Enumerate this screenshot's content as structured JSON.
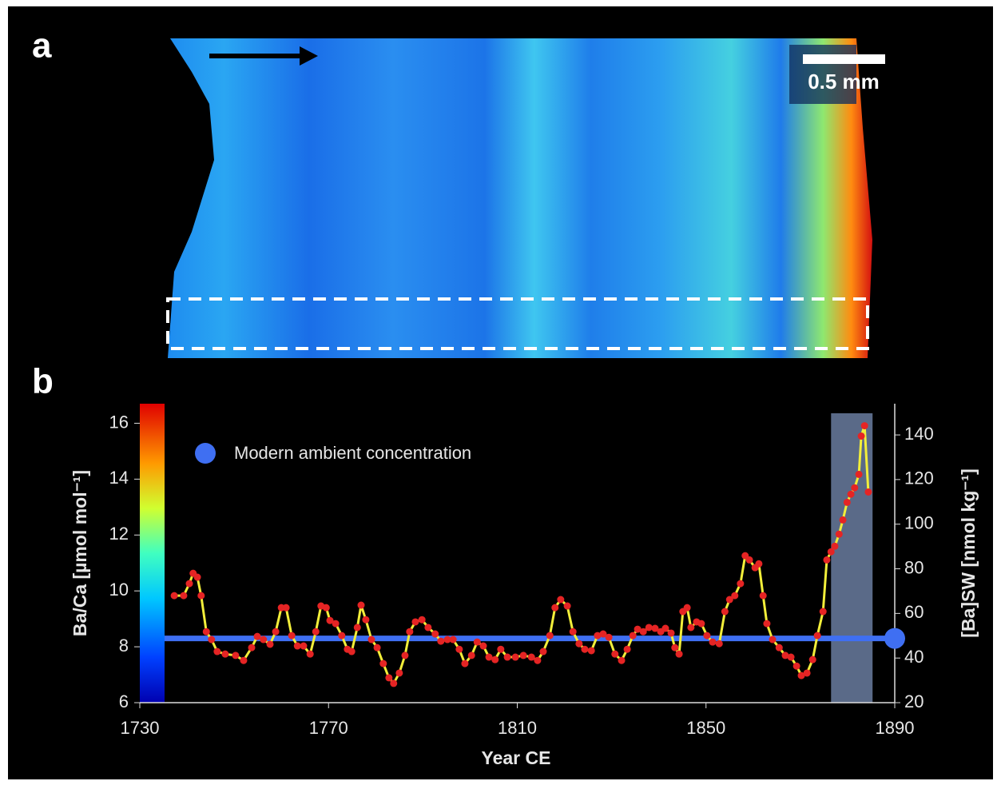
{
  "panel_a": {
    "label": "a",
    "scale_bar": "0.5 mm"
  },
  "chart_data": {
    "type": "line",
    "panel_label": "b",
    "xlabel": "Year CE",
    "ylabel": "Ba/Ca [µmol mol⁻¹]",
    "y2label": "[Ba]SW [nmol kg⁻¹]",
    "xlim": [
      1730,
      1890
    ],
    "xticks": [
      1730,
      1770,
      1810,
      1850,
      1890
    ],
    "ylim": [
      6,
      16.7
    ],
    "yticks": [
      6,
      8,
      10,
      12,
      14,
      16
    ],
    "y2lim": [
      20,
      154
    ],
    "y2ticks": [
      20,
      40,
      60,
      80,
      100,
      120,
      140
    ],
    "shaded_range": [
      1876.5,
      1885.3
    ],
    "shade_color": "#5a6a88",
    "reference": {
      "name": "Modern ambient concentration",
      "value": 8.3,
      "color": "#3f6ff2"
    },
    "series": [
      {
        "color": "#f2ee3a",
        "marker_color": "#e52424",
        "x": [
          1737.3,
          1739.3,
          1740.5,
          1741.3,
          1742.2,
          1743,
          1744.1,
          1745.2,
          1746.4,
          1748.1,
          1750.3,
          1752,
          1753.7,
          1754.9,
          1756.2,
          1757.6,
          1758.8,
          1760,
          1761,
          1762.2,
          1763.4,
          1764.7,
          1766.1,
          1767.3,
          1768.4,
          1769.5,
          1770.3,
          1771.5,
          1772.8,
          1774,
          1774.9,
          1776.1,
          1776.9,
          1777.9,
          1779.1,
          1780.3,
          1781.6,
          1782.8,
          1783.8,
          1785,
          1786.2,
          1787.2,
          1788.4,
          1789.8,
          1791.1,
          1792.6,
          1793.8,
          1795.2,
          1796.4,
          1797.7,
          1798.9,
          1800.3,
          1801.5,
          1802.8,
          1804,
          1805.3,
          1806.5,
          1807.9,
          1809.6,
          1811.3,
          1813,
          1814.3,
          1815.5,
          1816.9,
          1818,
          1819.2,
          1820.6,
          1821.8,
          1823.1,
          1824.3,
          1825.7,
          1827,
          1828.2,
          1829.4,
          1830.7,
          1832.1,
          1833.3,
          1834.5,
          1835.5,
          1836.7,
          1837.9,
          1839.2,
          1840.4,
          1841.4,
          1842.6,
          1843.4,
          1844.3,
          1845.1,
          1846,
          1846.8,
          1848,
          1849,
          1850.2,
          1851.4,
          1852.8,
          1854,
          1855,
          1856.1,
          1857.3,
          1858.3,
          1859.2,
          1860.4,
          1861.2,
          1862.1,
          1862.9,
          1864.1,
          1865.5,
          1866.8,
          1868,
          1869.2,
          1870.2,
          1871.4,
          1872.6,
          1873.6,
          1874.8,
          1875.6,
          1876.5,
          1877.3,
          1878.2,
          1879,
          1879.9,
          1880.7,
          1881.5,
          1882.4,
          1882.9,
          1883.6,
          1884.4
        ],
        "values": [
          9.83,
          9.83,
          10.26,
          10.63,
          10.49,
          9.83,
          8.54,
          8.26,
          7.83,
          7.74,
          7.69,
          7.51,
          7.97,
          8.37,
          8.26,
          8.09,
          8.54,
          9.4,
          9.4,
          8.4,
          8.03,
          8.03,
          7.74,
          8.54,
          9.46,
          9.4,
          8.94,
          8.83,
          8.4,
          7.91,
          7.83,
          8.69,
          9.49,
          8.97,
          8.26,
          7.97,
          7.4,
          6.89,
          6.69,
          7.06,
          7.69,
          8.54,
          8.89,
          8.97,
          8.69,
          8.46,
          8.2,
          8.26,
          8.26,
          7.91,
          7.4,
          7.69,
          8.17,
          8.03,
          7.63,
          7.54,
          7.91,
          7.63,
          7.63,
          7.69,
          7.63,
          7.51,
          7.83,
          8.4,
          9.4,
          9.69,
          9.46,
          8.54,
          8.11,
          7.91,
          7.86,
          8.4,
          8.46,
          8.34,
          7.74,
          7.51,
          7.91,
          8.4,
          8.63,
          8.54,
          8.69,
          8.66,
          8.54,
          8.66,
          8.49,
          7.97,
          7.74,
          9.26,
          9.4,
          8.69,
          8.89,
          8.83,
          8.4,
          8.17,
          8.11,
          9.26,
          9.69,
          9.83,
          10.26,
          11.26,
          11.11,
          10.83,
          10.97,
          9.83,
          8.83,
          8.26,
          7.97,
          7.69,
          7.63,
          7.31,
          6.97,
          7.06,
          7.54,
          8.4,
          9.26,
          11.11,
          11.4,
          11.6,
          12.03,
          12.54,
          13.17,
          13.46,
          13.69,
          14.17,
          15.54,
          15.91,
          13.54
        ]
      }
    ]
  }
}
